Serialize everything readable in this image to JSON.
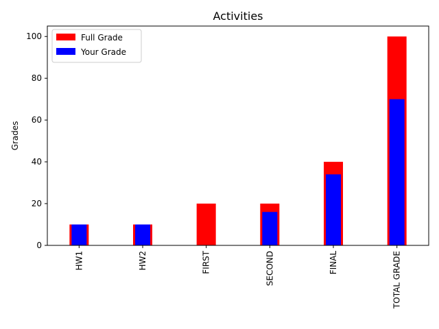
{
  "chart_data": {
    "type": "bar",
    "title": "Activities",
    "xlabel": "",
    "ylabel": "Grades",
    "categories": [
      "HW1",
      "HW2",
      "FIRST",
      "SECOND",
      "FINAL",
      "TOTAL GRADE"
    ],
    "series": [
      {
        "name": "Full Grade",
        "color": "#ff0000",
        "values": [
          10,
          10,
          20,
          20,
          40,
          100
        ]
      },
      {
        "name": "Your Grade",
        "color": "#0000ff",
        "values": [
          10,
          10,
          0,
          16,
          34,
          70
        ]
      }
    ],
    "ylim": [
      0,
      105
    ],
    "yticks": [
      0,
      20,
      40,
      60,
      80,
      100
    ],
    "grid": false,
    "legend_position": "top-left",
    "x_tick_rotation": "vertical"
  }
}
